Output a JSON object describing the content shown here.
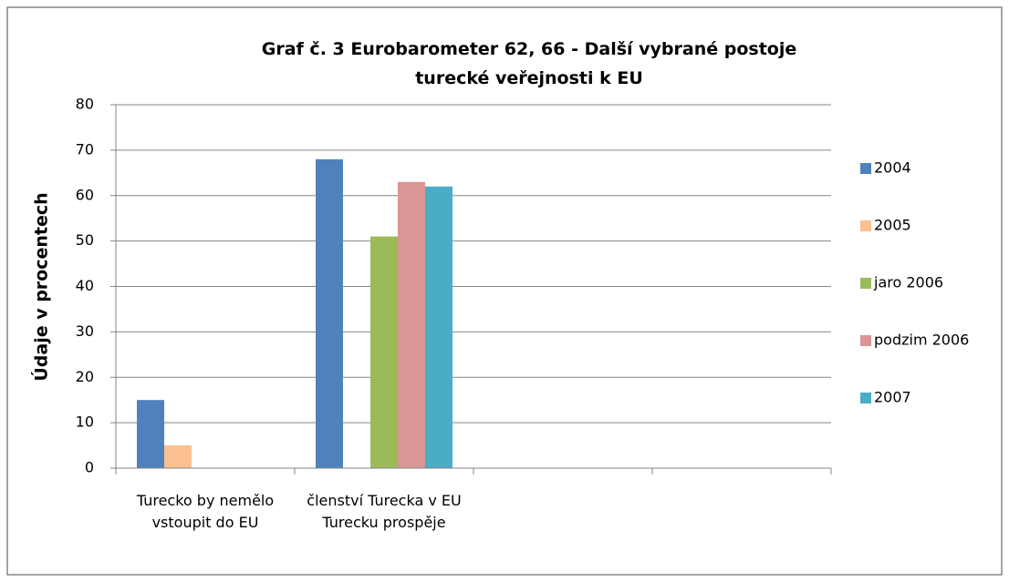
{
  "chart_data": {
    "type": "bar",
    "title": "Graf č. 3 Eurobarometer 62, 66 - Další vybrané postoje turecké veřejnosti k EU",
    "y_label": "Údaje v procentech",
    "categories": [
      "Turecko by nemělo vstoupit do EU",
      "členství Turecka v EU Turecku prospěje",
      null,
      null
    ],
    "series": [
      {
        "name": "2004",
        "color": "#4f81bd",
        "values": [
          15,
          68,
          null,
          null
        ]
      },
      {
        "name": "2005",
        "color": "#fac090",
        "values": [
          5,
          null,
          null,
          null
        ]
      },
      {
        "name": "jaro 2006",
        "color": "#9bbb59",
        "values": [
          null,
          51,
          null,
          null
        ]
      },
      {
        "name": "podzim 2006",
        "color": "#d99694",
        "values": [
          null,
          63,
          null,
          null
        ]
      },
      {
        "name": "2007",
        "color": "#4bacc6",
        "values": [
          null,
          62,
          null,
          null
        ]
      }
    ],
    "ylim": [
      0,
      80
    ],
    "yticks": [
      0,
      10,
      20,
      30,
      40,
      50,
      60,
      70,
      80
    ],
    "grid": true,
    "legend": "right"
  }
}
